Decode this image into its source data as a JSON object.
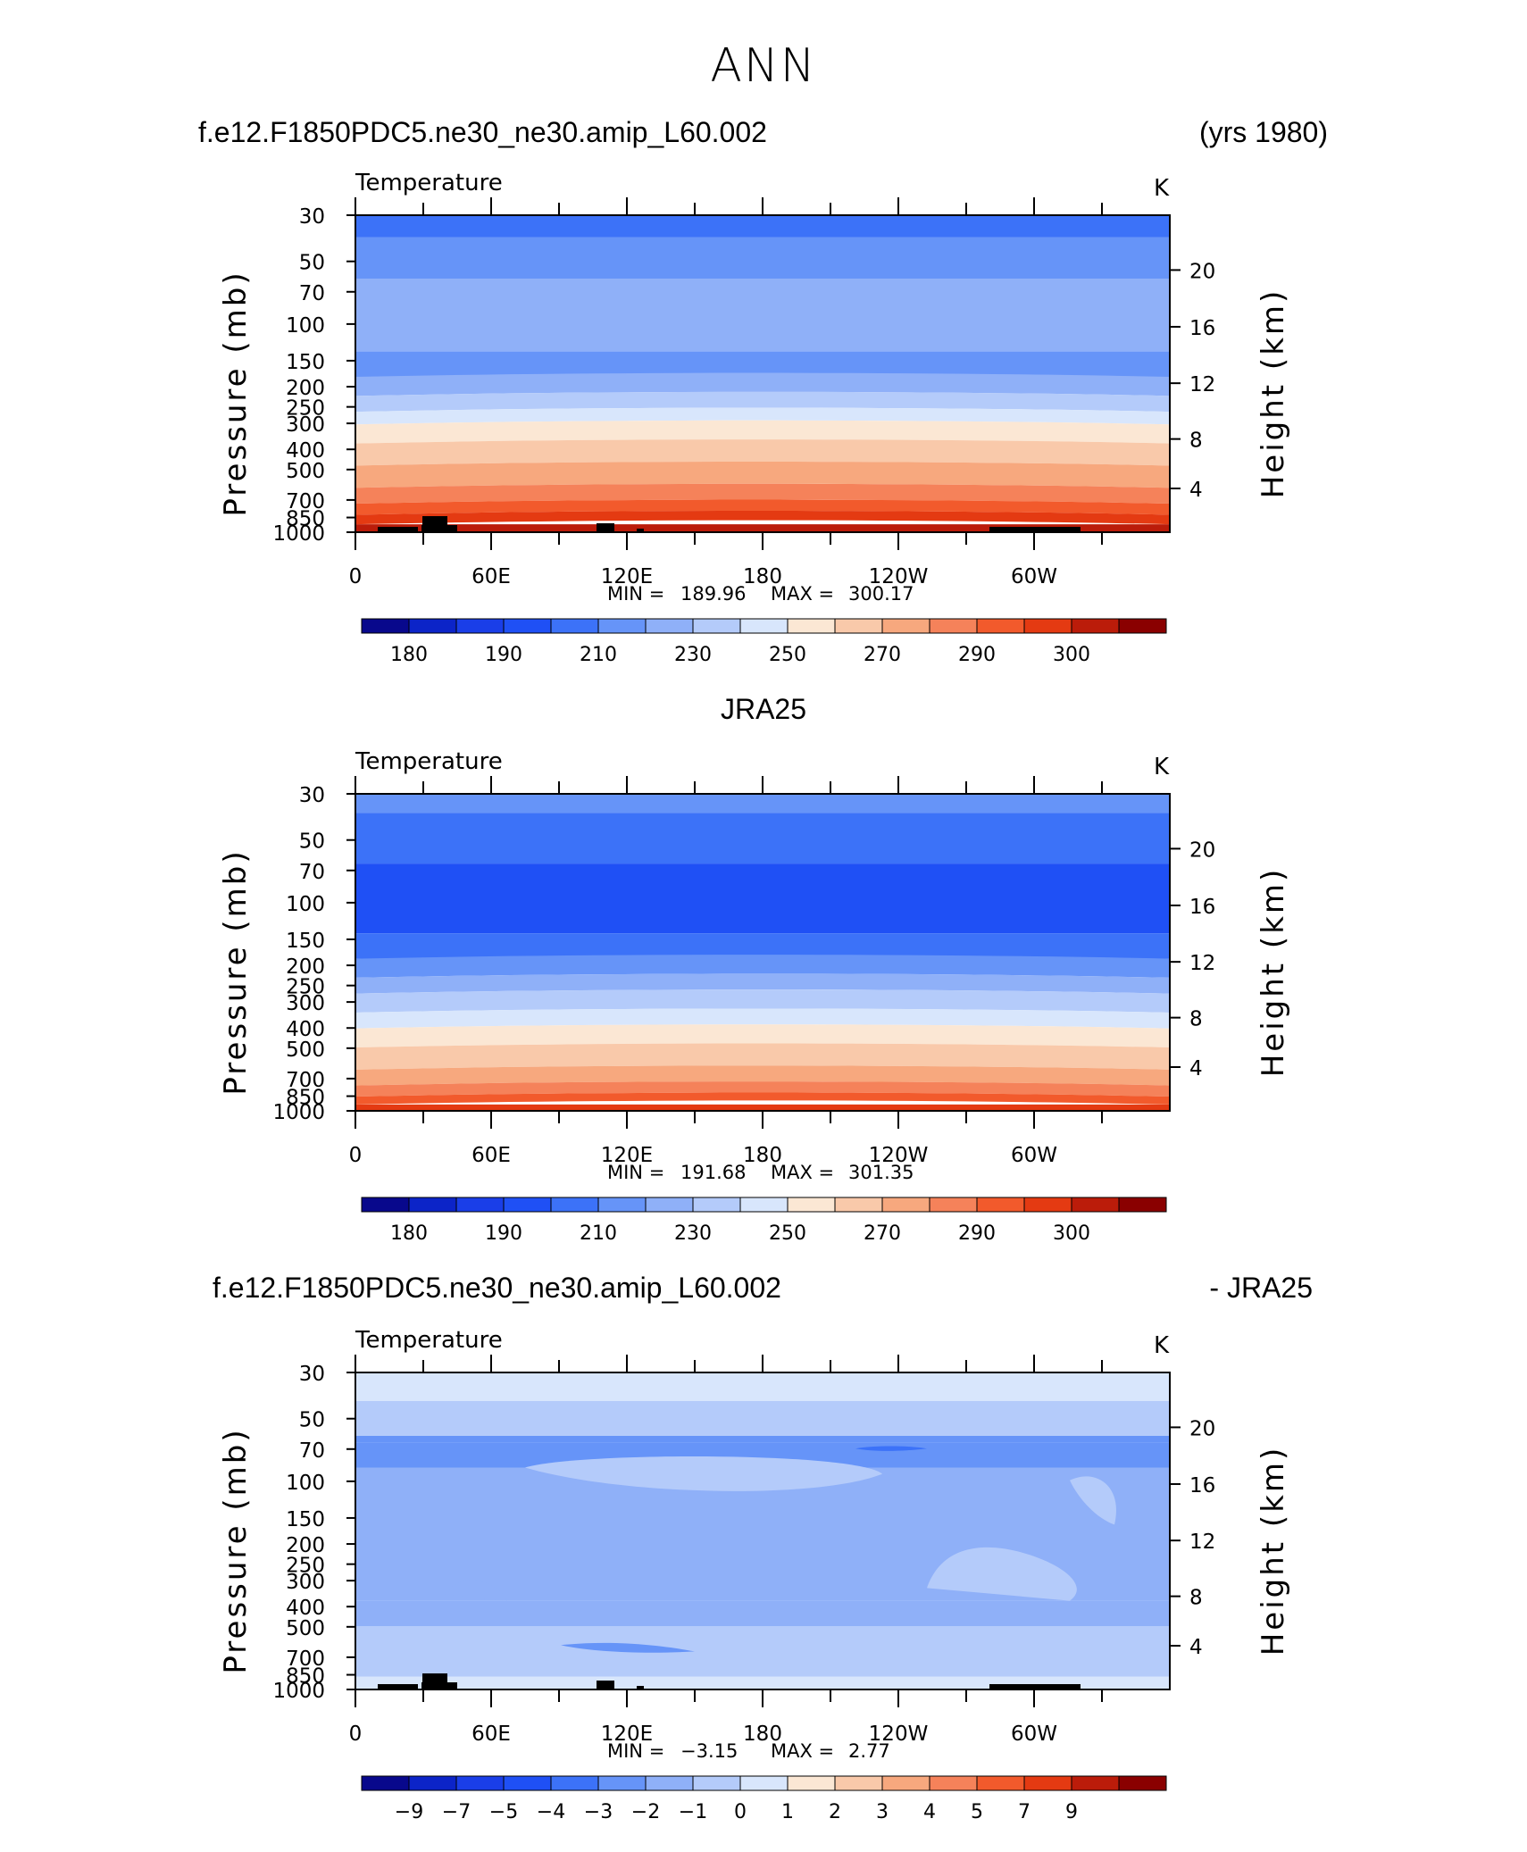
{
  "page": {
    "title": "ANN",
    "header_left": "f.e12.F1850PDC5.ne30_ne30.amip_L60.002",
    "header_right": "(yrs 1980)",
    "mid_title": "JRA25",
    "diff_left": "f.e12.F1850PDC5.ne30_ne30.amip_L60.002",
    "diff_right": "- JRA25"
  },
  "chart_data": [
    {
      "type": "heatmap",
      "title": "Temperature",
      "units": "K",
      "xlabel": "",
      "ylabel": "Pressure (mb)",
      "y2label": "Height (km)",
      "x_ticks": [
        "0",
        "60E",
        "120E",
        "180",
        "120W",
        "60W"
      ],
      "y_ticks": [
        "30",
        "50",
        "70",
        "100",
        "150",
        "200",
        "250",
        "300",
        "400",
        "500",
        "700",
        "850",
        "1000"
      ],
      "y2_ticks": [
        "20",
        "16",
        "12",
        "8",
        "4"
      ],
      "min_label": "MIN =",
      "min_value": "189.96",
      "max_label": "MAX =",
      "max_value": "300.17",
      "colorbar_labels": [
        "180",
        "190",
        "210",
        "230",
        "250",
        "270",
        "290",
        "300"
      ],
      "layers_bins": [
        4,
        5,
        6,
        5,
        6,
        7,
        8,
        9,
        10,
        11,
        12,
        13,
        14,
        15
      ]
    },
    {
      "type": "heatmap",
      "title": "Temperature",
      "units": "K",
      "xlabel": "",
      "ylabel": "Pressure (mb)",
      "y2label": "Height (km)",
      "x_ticks": [
        "0",
        "60E",
        "120E",
        "180",
        "120W",
        "60W"
      ],
      "y_ticks": [
        "30",
        "50",
        "70",
        "100",
        "150",
        "200",
        "250",
        "300",
        "400",
        "500",
        "700",
        "850",
        "1000"
      ],
      "y2_ticks": [
        "20",
        "16",
        "12",
        "8",
        "4"
      ],
      "min_label": "MIN =",
      "min_value": "191.68",
      "max_label": "MAX =",
      "max_value": "301.35",
      "colorbar_labels": [
        "180",
        "190",
        "210",
        "230",
        "250",
        "270",
        "290",
        "300"
      ],
      "layers_bins": [
        5,
        4,
        3,
        4,
        5,
        6,
        7,
        8,
        9,
        10,
        11,
        12,
        13,
        14
      ]
    },
    {
      "type": "heatmap",
      "title": "Temperature",
      "units": "K",
      "xlabel": "",
      "ylabel": "Pressure (mb)",
      "y2label": "Height (km)",
      "x_ticks": [
        "0",
        "60E",
        "120E",
        "180",
        "120W",
        "60W"
      ],
      "y_ticks": [
        "30",
        "50",
        "70",
        "100",
        "150",
        "200",
        "250",
        "300",
        "400",
        "500",
        "700",
        "850",
        "1000"
      ],
      "y2_ticks": [
        "20",
        "16",
        "12",
        "8",
        "4"
      ],
      "min_label": "MIN =",
      "min_value": "−3.15",
      "max_label": "MAX =",
      "max_value": "2.77",
      "colorbar_labels": [
        "−9",
        "−7",
        "−5",
        "−4",
        "−3",
        "−2",
        "−1",
        "0",
        "1",
        "2",
        "3",
        "4",
        "5",
        "7",
        "9"
      ],
      "layers_bins": [
        8,
        7,
        5,
        5,
        6,
        6,
        7,
        8
      ]
    }
  ],
  "colors": {
    "palette": [
      "#08088c",
      "#0c24c8",
      "#1a3ee8",
      "#1f50f5",
      "#3c72f8",
      "#6694f8",
      "#8fb0f8",
      "#b4cbfa",
      "#d8e6fc",
      "#fbe7d4",
      "#f9c9aa",
      "#f7a87e",
      "#f5825a",
      "#f25a2c",
      "#e43a12",
      "#bb1c0a",
      "#8a0000"
    ]
  }
}
